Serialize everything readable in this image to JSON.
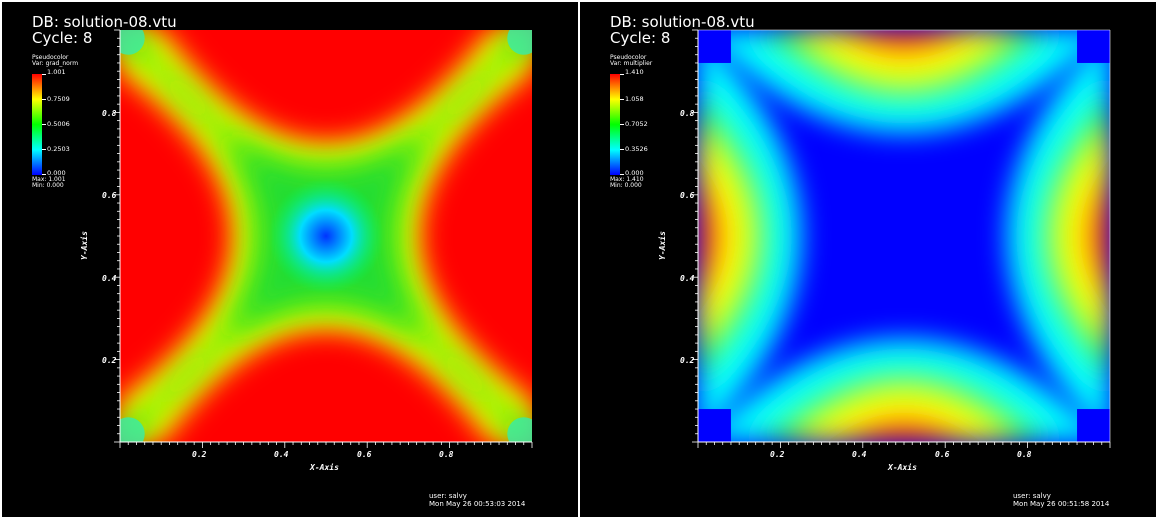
{
  "panels": [
    {
      "db": "DB: solution-08.vtu",
      "cycle": "Cycle: 8",
      "plot_kind": "Pseudocolor",
      "var": "Var: grad_norm",
      "legend_ticks": [
        "1.001",
        "0.7509",
        "0.5006",
        "0.2503",
        "0.000"
      ],
      "max": "Max: 1.001",
      "min": "Min: 0.000",
      "x_axis": "X-Axis",
      "y_axis": "Y-Axis",
      "x_ticks": [
        "0.2",
        "0.4",
        "0.6",
        "0.8"
      ],
      "y_ticks": [
        "0.8",
        "0.6",
        "0.4",
        "0.2"
      ],
      "user": "user: salvy",
      "date": "Mon May 26 00:53:03 2014"
    },
    {
      "db": "DB: solution-08.vtu",
      "cycle": "Cycle: 8",
      "plot_kind": "Pseudocolor",
      "var": "Var: multiplier",
      "legend_ticks": [
        "1.410",
        "1.058",
        "0.7052",
        "0.3526",
        "0.000"
      ],
      "max": "Max: 1.410",
      "min": "Min: 0.000",
      "x_axis": "X-Axis",
      "y_axis": "Y-Axis",
      "x_ticks": [
        "0.2",
        "0.4",
        "0.6",
        "0.8"
      ],
      "y_ticks": [
        "0.8",
        "0.6",
        "0.4",
        "0.2"
      ],
      "user": "user: salvy",
      "date": "Mon May 26 00:51:58 2014"
    }
  ],
  "colors": {
    "background": "#000000",
    "page": "#ffffff",
    "red": "#ff0000",
    "blue": "#0000ff",
    "green": "#2bd22b"
  }
}
